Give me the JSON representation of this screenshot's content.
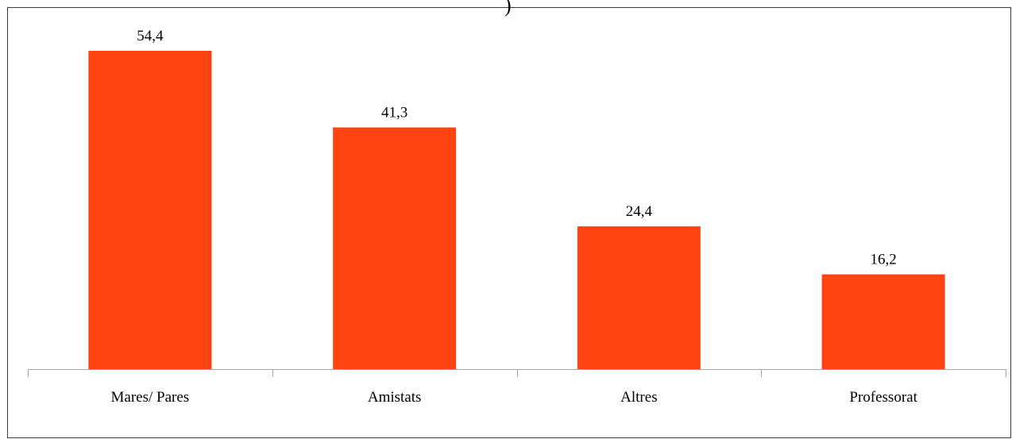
{
  "chart_data": {
    "type": "bar",
    "title": "",
    "xlabel": "",
    "ylabel": "",
    "categories": [
      "Mares/ Pares",
      "Amistats",
      "Altres",
      "Professorat"
    ],
    "values": [
      54.4,
      41.3,
      24.4,
      16.2
    ],
    "value_labels": [
      "54,4",
      "41,3",
      "24,4",
      "16,2"
    ],
    "ylim": [
      0,
      54.4
    ],
    "grid": false,
    "legend": "none",
    "bar_color": "#ff4411",
    "axis_color": "#a6a6a6"
  }
}
